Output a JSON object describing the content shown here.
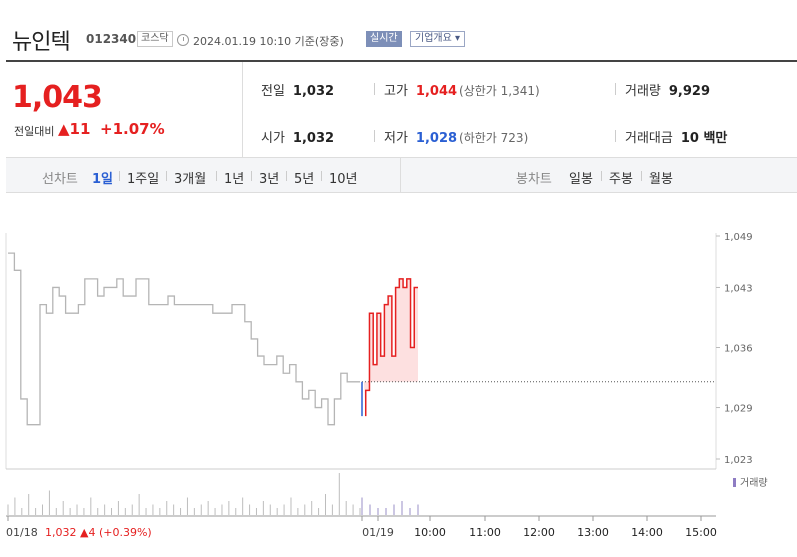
{
  "header": {
    "name": "뉴인텍",
    "code": "012340",
    "market": "코스닥",
    "datetime": "2024.01.19 10:10  기준(장중)",
    "realtime": "실시간",
    "overview": "기업개요 ▾"
  },
  "price": {
    "current": "1,043",
    "change_label": "전일대비",
    "change": "▲11",
    "change_pct": "+1.07%"
  },
  "stats": {
    "prev_label": "전일",
    "prev": "1,032",
    "open_label": "시가",
    "open": "1,032",
    "high_label": "고가",
    "high": "1,044",
    "upper_limit": "(상한가 1,341)",
    "low_label": "저가",
    "low": "1,028",
    "lower_limit": "(하한가 723)",
    "volume_label": "거래량",
    "volume": "9,929",
    "amount_label": "거래대금",
    "amount": "10 백만"
  },
  "tabs": {
    "line_chart": "선차트",
    "periods": [
      "1일",
      "1주일",
      "3개월",
      "1년",
      "3년",
      "5년",
      "10년"
    ],
    "candle_chart": "봉차트",
    "candle_periods": [
      "일봉",
      "주봉",
      "월봉"
    ]
  },
  "chart_data": {
    "type": "line",
    "y_ticks": [
      "1,049",
      "1,043",
      "1,036",
      "1,029",
      "1,023"
    ],
    "y_tick_values": [
      1049,
      1043,
      1036,
      1029,
      1023
    ],
    "ylim": [
      1023,
      1049
    ],
    "x_ticks": [
      "01/19",
      "10:00",
      "11:00",
      "12:00",
      "13:00",
      "14:00",
      "15:00"
    ],
    "volume_label": "거래량",
    "baseline": 1032,
    "prev_day_label": "01/18",
    "prev_day_summary": "1,032 ▲4 (+0.39%)",
    "prev_day_series": [
      [
        0,
        1047
      ],
      [
        1,
        1045
      ],
      [
        2,
        1030
      ],
      [
        3,
        1027
      ],
      [
        4,
        1027
      ],
      [
        5,
        1041
      ],
      [
        6,
        1040
      ],
      [
        7,
        1043
      ],
      [
        8,
        1042
      ],
      [
        9,
        1040
      ],
      [
        10,
        1040
      ],
      [
        11,
        1041
      ],
      [
        12,
        1044
      ],
      [
        13,
        1044
      ],
      [
        14,
        1042
      ],
      [
        15,
        1043
      ],
      [
        16,
        1043
      ],
      [
        17,
        1044
      ],
      [
        18,
        1042
      ],
      [
        19,
        1042
      ],
      [
        20,
        1044
      ],
      [
        21,
        1044
      ],
      [
        22,
        1041
      ],
      [
        23,
        1041
      ],
      [
        24,
        1041
      ],
      [
        25,
        1042
      ],
      [
        26,
        1041
      ],
      [
        27,
        1041
      ],
      [
        28,
        1041
      ],
      [
        29,
        1041
      ],
      [
        30,
        1041
      ],
      [
        31,
        1041
      ],
      [
        32,
        1040
      ],
      [
        33,
        1040
      ],
      [
        34,
        1040
      ],
      [
        35,
        1041
      ],
      [
        36,
        1041
      ],
      [
        37,
        1039
      ],
      [
        38,
        1037
      ],
      [
        39,
        1035
      ],
      [
        40,
        1034
      ],
      [
        41,
        1034
      ],
      [
        42,
        1035
      ],
      [
        43,
        1033
      ],
      [
        44,
        1034
      ],
      [
        45,
        1032
      ],
      [
        46,
        1030
      ],
      [
        47,
        1031
      ],
      [
        48,
        1029
      ],
      [
        49,
        1030
      ],
      [
        50,
        1027
      ],
      [
        51,
        1030
      ],
      [
        52,
        1033
      ],
      [
        53,
        1032
      ],
      [
        54,
        1032
      ],
      [
        55,
        1032
      ]
    ],
    "today_series": [
      [
        0,
        1028
      ],
      [
        0.4,
        1031
      ],
      [
        0.8,
        1040
      ],
      [
        1.2,
        1034
      ],
      [
        1.6,
        1040
      ],
      [
        2,
        1035
      ],
      [
        2.4,
        1041
      ],
      [
        2.8,
        1042
      ],
      [
        3.2,
        1035
      ],
      [
        3.6,
        1043
      ],
      [
        4,
        1044
      ],
      [
        4.4,
        1043
      ],
      [
        4.8,
        1044
      ],
      [
        5.2,
        1036
      ],
      [
        5.6,
        1043
      ],
      [
        6,
        1043
      ]
    ],
    "volume_bars": [
      3,
      5,
      2,
      6,
      2,
      3,
      7,
      2,
      4,
      2,
      3,
      2,
      5,
      2,
      3,
      2,
      4,
      2,
      3,
      6,
      2,
      3,
      2,
      4,
      3,
      2,
      5,
      2,
      3,
      4,
      2,
      3,
      4,
      2,
      5,
      3,
      2,
      4,
      3,
      2,
      3,
      5,
      2,
      3,
      4,
      2,
      6,
      3,
      12,
      4,
      3,
      2,
      5,
      3,
      2,
      2,
      3,
      4,
      2,
      3
    ]
  },
  "colors": {
    "up": "#e52020",
    "down": "#2a5fd3",
    "prev_line": "#b5b5b5",
    "fill": "#fde0e0"
  }
}
